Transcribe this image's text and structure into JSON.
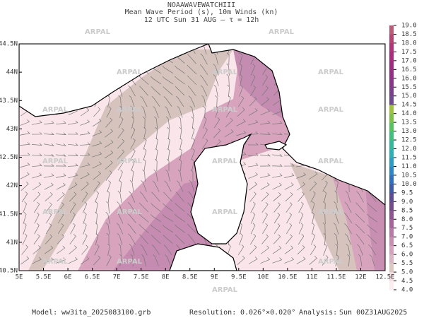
{
  "header": {
    "model_name": "NOAAWAVEWATCHIII",
    "field": "Mean Wave Period (s), 10m Winds (kn)",
    "time": "12 UTC Sun 31 AUG  —  τ = 12h"
  },
  "map": {
    "lat_labels": [
      "40.5N",
      "41N",
      "41.5N",
      "42N",
      "42.5N",
      "43N",
      "43.5N",
      "44N",
      "44.5N"
    ],
    "lon_labels": [
      "5E",
      "5.5E",
      "6E",
      "6.5E",
      "7E",
      "7.5E",
      "8E",
      "8.5E",
      "9E",
      "9.5E",
      "10E",
      "10.5E",
      "11E",
      "11.5E",
      "12E",
      "12.5E"
    ],
    "watermark": "ARPAL"
  },
  "colorbar": {
    "labels": [
      "4.0",
      "4.5",
      "5.0",
      "5.5",
      "6.0",
      "6.5",
      "7.0",
      "7.5",
      "8.0",
      "8.5",
      "9.0",
      "9.5",
      "10.0",
      "10.5",
      "11.0",
      "11.5",
      "12.0",
      "12.5",
      "13.0",
      "13.5",
      "14.0",
      "14.5",
      "15.0",
      "15.5",
      "16.0",
      "16.5",
      "17.0",
      "17.5",
      "18.0",
      "18.5",
      "19.0"
    ],
    "colors": [
      "#fbeef0",
      "#f5dde2",
      "#dcc9c2",
      "#d9b8c4",
      "#d6a3bd",
      "#c98fb2",
      "#b97aa6",
      "#a7659b",
      "#8e5590",
      "#744c8c",
      "#5c4c94",
      "#3e5aa8",
      "#2f6fbd",
      "#2d86c7",
      "#2c9dc4",
      "#2eb1b5",
      "#35b99a",
      "#3fbf7c",
      "#55c35e",
      "#7ec24a",
      "#a0c23e",
      "#6d4a8f",
      "#7a3f8c",
      "#873688",
      "#952e85",
      "#a02a80",
      "#aa2a7b",
      "#b23377",
      "#b84474",
      "#bd5a77"
    ]
  },
  "footer": {
    "model_label": "Model:",
    "model": "ww3ita_2025083100.grb",
    "resolution_label": "Resolution:",
    "resolution": "0.026°×0.020°",
    "analysis_label": "Analysis:",
    "analysis": "Sun 00Z31AUG2025"
  }
}
